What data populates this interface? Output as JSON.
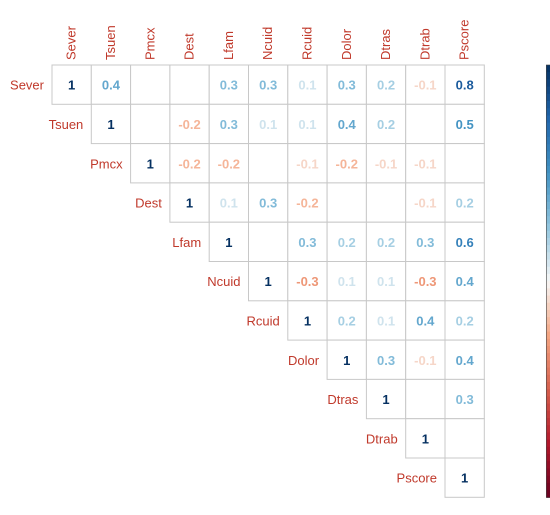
{
  "chart_data": {
    "type": "heatmap",
    "variables": [
      "Sever",
      "Tsuen",
      "Pmcx",
      "Dest",
      "Lfam",
      "Ncuid",
      "Rcuid",
      "Dolor",
      "Dtras",
      "Dtrab",
      "Pscore"
    ],
    "layout": "upper-triangle",
    "matrix": [
      [
        1,
        0.4,
        null,
        null,
        0.3,
        0.3,
        0.1,
        0.3,
        0.2,
        -0.1,
        0.8
      ],
      [
        null,
        1,
        null,
        -0.2,
        0.3,
        0.1,
        0.1,
        0.4,
        0.2,
        null,
        0.5
      ],
      [
        null,
        null,
        1,
        -0.2,
        -0.2,
        null,
        -0.1,
        -0.2,
        -0.1,
        -0.1,
        null
      ],
      [
        null,
        null,
        null,
        1,
        0.1,
        0.3,
        -0.2,
        null,
        null,
        -0.1,
        0.2
      ],
      [
        null,
        null,
        null,
        null,
        1,
        null,
        0.3,
        0.2,
        0.2,
        0.3,
        0.6
      ],
      [
        null,
        null,
        null,
        null,
        null,
        1,
        -0.3,
        0.1,
        0.1,
        -0.3,
        0.4
      ],
      [
        null,
        null,
        null,
        null,
        null,
        null,
        1,
        0.2,
        0.1,
        0.4,
        0.2
      ],
      [
        null,
        null,
        null,
        null,
        null,
        null,
        null,
        1,
        0.3,
        -0.1,
        0.4
      ],
      [
        null,
        null,
        null,
        null,
        null,
        null,
        null,
        null,
        1,
        null,
        0.3
      ],
      [
        null,
        null,
        null,
        null,
        null,
        null,
        null,
        null,
        null,
        1,
        null
      ],
      [
        null,
        null,
        null,
        null,
        null,
        null,
        null,
        null,
        null,
        null,
        1
      ]
    ],
    "colorbar": {
      "range": [
        -1,
        1
      ],
      "ticks": [
        "1",
        "0.8",
        "0.6",
        "0.4",
        "0.2",
        "0",
        "-0.2",
        "-0.4",
        "-0.6",
        "-0.8",
        "-1"
      ],
      "colors": {
        "negative": "#67001f",
        "neutral": "#f7f7f7",
        "positive": "#053061"
      }
    },
    "label_color": "#c0392b",
    "grid": true
  }
}
